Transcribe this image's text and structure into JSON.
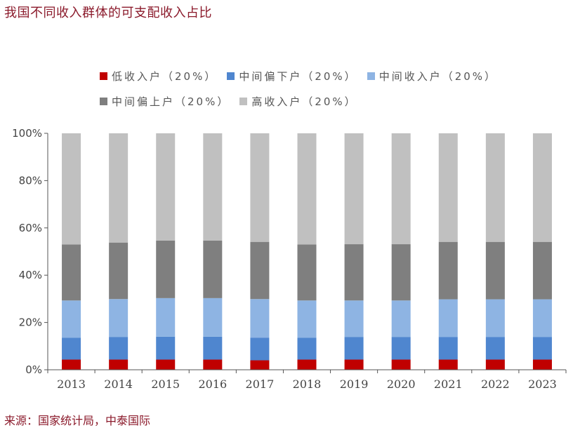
{
  "title": "我国不同收入群体的可支配收入占比",
  "source": "来源：国家统计局，中泰国际",
  "chart_data": {
    "type": "bar",
    "stacked": true,
    "title": "",
    "xlabel": "",
    "ylabel": "",
    "ylim": [
      0,
      100
    ],
    "yticks": [
      "0%",
      "20%",
      "40%",
      "60%",
      "80%",
      "100%"
    ],
    "categories": [
      "2013",
      "2014",
      "2015",
      "2016",
      "2017",
      "2018",
      "2019",
      "2020",
      "2021",
      "2022",
      "2023"
    ],
    "legend_position": "top",
    "grid": false,
    "series": [
      {
        "name": "低收入户（20%）",
        "color": "#c00000",
        "values": [
          4.3,
          4.3,
          4.3,
          4.3,
          4.0,
          4.3,
          4.3,
          4.3,
          4.3,
          4.3,
          4.3
        ]
      },
      {
        "name": "中间偏下户（20%）",
        "color": "#4f86cf",
        "values": [
          9.2,
          9.6,
          9.7,
          9.7,
          9.6,
          9.2,
          9.6,
          9.6,
          9.6,
          9.6,
          9.6
        ]
      },
      {
        "name": "中间收入户（20%）",
        "color": "#8eb4e3",
        "values": [
          15.8,
          16.0,
          16.3,
          16.3,
          16.3,
          15.8,
          15.4,
          15.4,
          15.9,
          15.9,
          15.9
        ]
      },
      {
        "name": "中间偏上户（20%）",
        "color": "#7f7f7f",
        "values": [
          23.7,
          23.9,
          24.3,
          24.3,
          24.2,
          23.7,
          23.8,
          23.8,
          24.3,
          24.3,
          24.3
        ]
      },
      {
        "name": "高收入户（20%）",
        "color": "#c0c0c0",
        "values": [
          47.0,
          46.2,
          45.4,
          45.4,
          45.9,
          47.0,
          46.9,
          46.9,
          45.9,
          45.9,
          45.9
        ]
      }
    ]
  }
}
